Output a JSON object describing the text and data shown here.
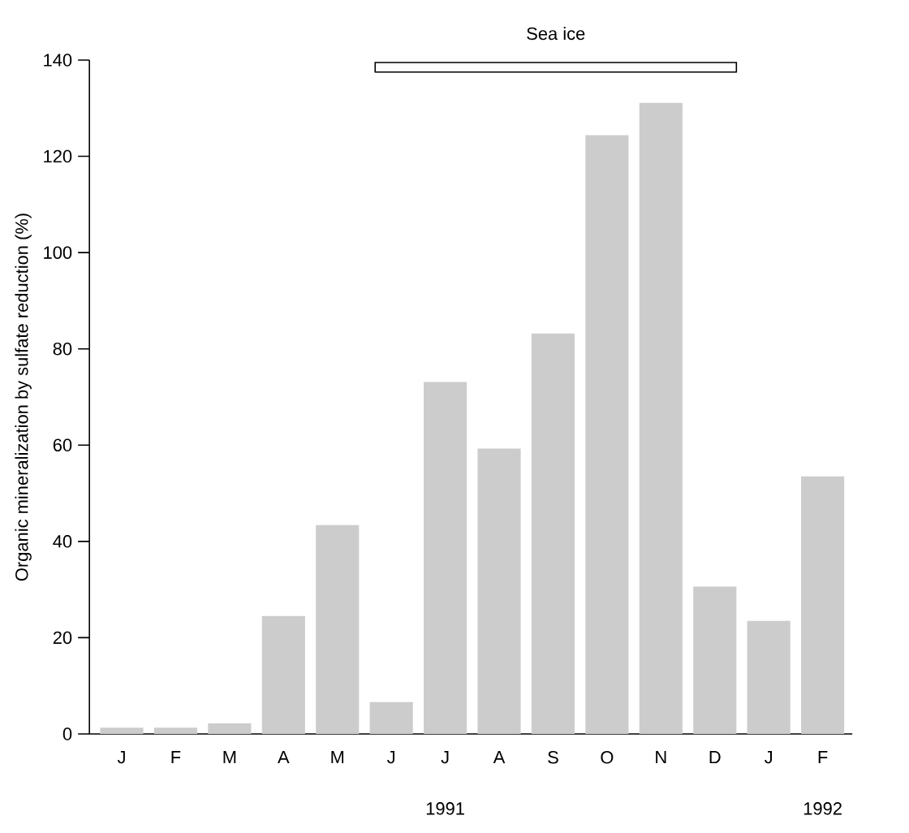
{
  "chart_data": {
    "type": "bar",
    "ylabel": "Organic mineralization by sulfate reduction (%)",
    "categories": [
      "J",
      "F",
      "M",
      "A",
      "M",
      "J",
      "J",
      "A",
      "S",
      "O",
      "N",
      "D",
      "J",
      "F"
    ],
    "values": [
      1.3,
      1.3,
      2.2,
      24.5,
      43.4,
      6.6,
      73.1,
      59.3,
      83.2,
      124.4,
      131.1,
      30.6,
      23.5,
      53.5
    ],
    "color": "#cccccc",
    "ylim": [
      0,
      140
    ],
    "yticks": [
      0,
      20,
      40,
      60,
      80,
      100,
      120,
      140
    ],
    "annotations": [
      "Sea ice",
      "1991",
      "1992"
    ]
  }
}
